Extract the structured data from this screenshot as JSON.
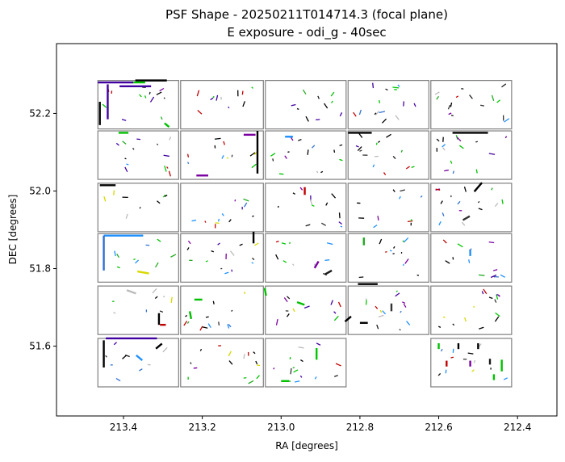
{
  "chart_data": {
    "type": "scatter",
    "title": [
      "PSF Shape - 20250211T014714.3 (focal plane)",
      "E exposure - odi_g - 40sec"
    ],
    "xlabel": "RA [degrees]",
    "ylabel": "DEC [degrees]",
    "xlim": [
      213.57,
      212.3
    ],
    "ylim": [
      51.42,
      52.38
    ],
    "x_inverted": true,
    "grid": false,
    "xticks": [
      213.4,
      213.2,
      213.0,
      212.8,
      212.6,
      212.4
    ],
    "xtick_labels": [
      "213.4",
      "213.2",
      "213.0",
      "212.8",
      "212.6",
      "212.4"
    ],
    "yticks": [
      51.6,
      51.8,
      52.0,
      52.2
    ],
    "ytick_labels": [
      "51.6",
      "51.8",
      "52.0",
      "52.2"
    ],
    "ota_grid": {
      "ra_columns": [
        [
          213.465,
          213.26
        ],
        [
          213.255,
          213.045
        ],
        [
          213.04,
          212.835
        ],
        [
          212.83,
          212.625
        ],
        [
          212.62,
          212.415
        ]
      ],
      "dec_rows": [
        [
          52.285,
          52.16
        ],
        [
          52.155,
          52.03
        ],
        [
          52.02,
          51.895
        ],
        [
          51.89,
          51.765
        ],
        [
          51.755,
          51.63
        ],
        [
          51.62,
          51.495
        ]
      ],
      "missing": [
        [
          5,
          3
        ]
      ]
    },
    "color_palette": [
      "#000000",
      "#000000",
      "#000000",
      "#1a1a1a",
      "#333333",
      "#00c000",
      "#00c800",
      "#22aa22",
      "#1e90ff",
      "#3070d0",
      "#4000a0",
      "#7a00a0",
      "#c00000",
      "#d8d800",
      "#bbbbbb"
    ],
    "psf_segments": [
      {
        "ra": 213.42,
        "dec": 52.28,
        "len": 0.09,
        "angle": 0,
        "color": "#4000a0"
      },
      {
        "ra": 213.33,
        "dec": 52.285,
        "len": 0.08,
        "angle": 0,
        "color": "#000000"
      },
      {
        "ra": 213.36,
        "dec": 52.28,
        "len": 0.03,
        "angle": 0,
        "color": "#00c000"
      },
      {
        "ra": 213.44,
        "dec": 52.23,
        "len": 0.09,
        "angle": 90,
        "color": "#4000a0"
      },
      {
        "ra": 213.46,
        "dec": 52.2,
        "len": 0.06,
        "angle": 90,
        "color": "#000000"
      },
      {
        "ra": 213.37,
        "dec": 52.27,
        "len": 0.08,
        "angle": 0,
        "color": "#4000a0"
      },
      {
        "ra": 213.29,
        "dec": 52.17,
        "len": 0.015,
        "angle": 40,
        "color": "#00c000"
      },
      {
        "ra": 213.4,
        "dec": 52.15,
        "len": 0.025,
        "angle": 0,
        "color": "#00c000"
      },
      {
        "ra": 213.08,
        "dec": 52.145,
        "len": 0.03,
        "angle": 0,
        "color": "#7a00a0"
      },
      {
        "ra": 213.2,
        "dec": 52.04,
        "len": 0.03,
        "angle": 0,
        "color": "#7a00a0"
      },
      {
        "ra": 213.06,
        "dec": 52.1,
        "len": 0.11,
        "angle": 90,
        "color": "#000000"
      },
      {
        "ra": 212.98,
        "dec": 52.14,
        "len": 0.02,
        "angle": 0,
        "color": "#1e90ff"
      },
      {
        "ra": 212.8,
        "dec": 52.15,
        "len": 0.06,
        "angle": 0,
        "color": "#000000"
      },
      {
        "ra": 212.52,
        "dec": 52.15,
        "len": 0.09,
        "angle": 0,
        "color": "#000000"
      },
      {
        "ra": 213.44,
        "dec": 52.015,
        "len": 0.04,
        "angle": 0,
        "color": "#000000"
      },
      {
        "ra": 212.94,
        "dec": 52.0,
        "len": 0.02,
        "angle": 90,
        "color": "#c00000"
      },
      {
        "ra": 212.5,
        "dec": 52.01,
        "len": 0.03,
        "angle": -50,
        "color": "#000000"
      },
      {
        "ra": 212.53,
        "dec": 51.93,
        "len": 0.02,
        "angle": -30,
        "color": "#333333"
      },
      {
        "ra": 213.4,
        "dec": 51.885,
        "len": 0.1,
        "angle": 0,
        "color": "#1e90ff"
      },
      {
        "ra": 213.45,
        "dec": 51.84,
        "len": 0.09,
        "angle": 90,
        "color": "#3070d0"
      },
      {
        "ra": 213.35,
        "dec": 51.79,
        "len": 0.03,
        "angle": 10,
        "color": "#d8d800"
      },
      {
        "ra": 213.07,
        "dec": 51.88,
        "len": 0.03,
        "angle": 90,
        "color": "#000000"
      },
      {
        "ra": 212.91,
        "dec": 51.81,
        "len": 0.02,
        "angle": -60,
        "color": "#7a00a0"
      },
      {
        "ra": 212.88,
        "dec": 51.79,
        "len": 0.02,
        "angle": -30,
        "color": "#1a1a1a"
      },
      {
        "ra": 212.79,
        "dec": 51.87,
        "len": 0.02,
        "angle": 90,
        "color": "#22aa22"
      },
      {
        "ra": 212.52,
        "dec": 51.84,
        "len": 0.015,
        "angle": 90,
        "color": "#1e90ff"
      },
      {
        "ra": 213.38,
        "dec": 51.74,
        "len": 0.025,
        "angle": 20,
        "color": "#bbbbbb"
      },
      {
        "ra": 213.31,
        "dec": 51.67,
        "len": 0.03,
        "angle": 90,
        "color": "#000000"
      },
      {
        "ra": 213.3,
        "dec": 51.655,
        "len": 0.015,
        "angle": 0,
        "color": "#c00000"
      },
      {
        "ra": 213.21,
        "dec": 51.72,
        "len": 0.02,
        "angle": 0,
        "color": "#00c000"
      },
      {
        "ra": 213.23,
        "dec": 51.68,
        "len": 0.02,
        "angle": 80,
        "color": "#00c000"
      },
      {
        "ra": 213.04,
        "dec": 51.74,
        "len": 0.02,
        "angle": 80,
        "color": "#00c000"
      },
      {
        "ra": 212.95,
        "dec": 51.71,
        "len": 0.02,
        "angle": 20,
        "color": "#00c000"
      },
      {
        "ra": 212.78,
        "dec": 51.76,
        "len": 0.05,
        "angle": 0,
        "color": "#000000"
      },
      {
        "ra": 212.79,
        "dec": 51.66,
        "len": 0.02,
        "angle": 0,
        "color": "#000000"
      },
      {
        "ra": 212.83,
        "dec": 51.67,
        "len": 0.02,
        "angle": -40,
        "color": "#000000"
      },
      {
        "ra": 212.72,
        "dec": 51.7,
        "len": 0.02,
        "angle": 90,
        "color": "#333333"
      },
      {
        "ra": 213.38,
        "dec": 51.62,
        "len": 0.13,
        "angle": 0,
        "color": "#4000a0"
      },
      {
        "ra": 213.45,
        "dec": 51.58,
        "len": 0.07,
        "angle": 90,
        "color": "#000000"
      },
      {
        "ra": 213.36,
        "dec": 51.57,
        "len": 0.02,
        "angle": 40,
        "color": "#1e90ff"
      },
      {
        "ra": 213.31,
        "dec": 51.6,
        "len": 0.02,
        "angle": -40,
        "color": "#000000"
      },
      {
        "ra": 212.91,
        "dec": 51.58,
        "len": 0.03,
        "angle": 90,
        "color": "#00c800"
      },
      {
        "ra": 212.99,
        "dec": 51.51,
        "len": 0.02,
        "angle": 0,
        "color": "#00c000"
      },
      {
        "ra": 212.6,
        "dec": 51.6,
        "len": 0.015,
        "angle": 90,
        "color": "#00c000"
      },
      {
        "ra": 212.58,
        "dec": 51.555,
        "len": 0.015,
        "angle": 90,
        "color": "#c00000"
      },
      {
        "ra": 212.55,
        "dec": 51.6,
        "len": 0.015,
        "angle": 90,
        "color": "#000000"
      },
      {
        "ra": 212.52,
        "dec": 51.555,
        "len": 0.015,
        "angle": 90,
        "color": "#7a00a0"
      },
      {
        "ra": 212.5,
        "dec": 51.6,
        "len": 0.015,
        "angle": 90,
        "color": "#000000"
      },
      {
        "ra": 212.47,
        "dec": 51.56,
        "len": 0.015,
        "angle": 90,
        "color": "#1a1a1a"
      },
      {
        "ra": 212.44,
        "dec": 51.55,
        "len": 0.03,
        "angle": 90,
        "color": "#00c000"
      },
      {
        "ra": 212.46,
        "dec": 51.52,
        "len": 0.015,
        "angle": 90,
        "color": "#00c000"
      }
    ]
  }
}
